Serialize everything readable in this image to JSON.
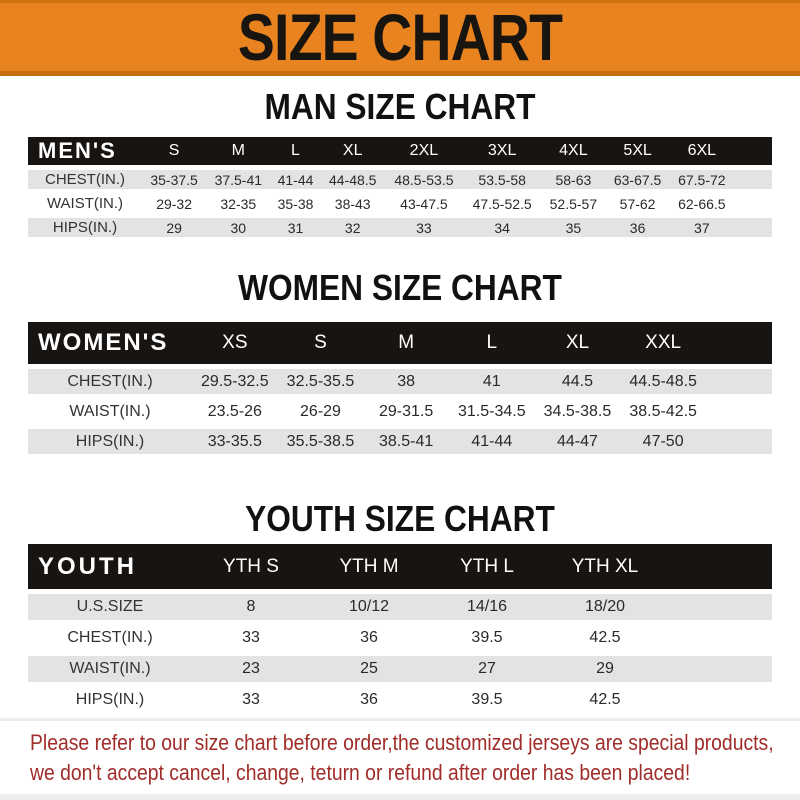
{
  "banner": {
    "title": "SIZE CHART",
    "bg_color": "#e8831f",
    "edge_color": "#c86c10",
    "text_color": "#181410"
  },
  "chart_data": [
    {
      "type": "table",
      "title": "MAN SIZE CHART",
      "corner_label": "MEN'S",
      "columns": [
        "S",
        "M",
        "L",
        "XL",
        "2XL",
        "3XL",
        "4XL",
        "5XL",
        "6XL"
      ],
      "rows": [
        {
          "label": "CHEST(IN.)",
          "values": [
            "35-37.5",
            "37.5-41",
            "41-44",
            "44-48.5",
            "48.5-53.5",
            "53.5-58",
            "58-63",
            "63-67.5",
            "67.5-72"
          ]
        },
        {
          "label": "WAIST(IN.)",
          "values": [
            "29-32",
            "32-35",
            "35-38",
            "38-43",
            "43-47.5",
            "47.5-52.5",
            "52.5-57",
            "57-62",
            "62-66.5"
          ]
        },
        {
          "label": "HIPS(IN.)",
          "values": [
            "29",
            "30",
            "31",
            "32",
            "33",
            "34",
            "35",
            "36",
            "37"
          ]
        }
      ],
      "header_bg": "#181411",
      "header_text_color": "#ffffff",
      "alt_row_bg": "#e3e3e3"
    },
    {
      "type": "table",
      "title": "WOMEN SIZE CHART",
      "corner_label": "WOMEN'S",
      "columns": [
        "XS",
        "S",
        "M",
        "L",
        "XL",
        "XXL"
      ],
      "rows": [
        {
          "label": "CHEST(IN.)",
          "values": [
            "29.5-32.5",
            "32.5-35.5",
            "38",
            "41",
            "44.5",
            "44.5-48.5"
          ]
        },
        {
          "label": "WAIST(IN.)",
          "values": [
            "23.5-26",
            "26-29",
            "29-31.5",
            "31.5-34.5",
            "34.5-38.5",
            "38.5-42.5"
          ]
        },
        {
          "label": "HIPS(IN.)",
          "values": [
            "33-35.5",
            "35.5-38.5",
            "38.5-41",
            "41-44",
            "44-47",
            "47-50"
          ]
        }
      ],
      "header_bg": "#181411",
      "header_text_color": "#ffffff",
      "alt_row_bg": "#e3e3e3"
    },
    {
      "type": "table",
      "title": "YOUTH SIZE CHART",
      "corner_label": "YOUTH",
      "columns": [
        "YTH S",
        "YTH M",
        "YTH L",
        "YTH XL"
      ],
      "rows": [
        {
          "label": "U.S.SIZE",
          "values": [
            "8",
            "10/12",
            "14/16",
            "18/20"
          ]
        },
        {
          "label": "CHEST(IN.)",
          "values": [
            "33",
            "36",
            "39.5",
            "42.5"
          ]
        },
        {
          "label": "WAIST(IN.)",
          "values": [
            "23",
            "25",
            "27",
            "29"
          ]
        },
        {
          "label": "HIPS(IN.)",
          "values": [
            "33",
            "36",
            "39.5",
            "42.5"
          ]
        }
      ],
      "header_bg": "#181411",
      "header_text_color": "#ffffff",
      "alt_row_bg": "#e3e3e3"
    }
  ],
  "footer": {
    "line1": "Please refer to our size chart before order,the customized jerseys are special products,",
    "line2": "we don't accept cancel, change, teturn or refund after order has been placed!",
    "text_color": "#a02d29"
  }
}
